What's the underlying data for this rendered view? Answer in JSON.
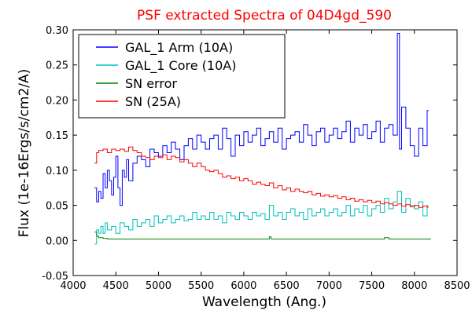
{
  "chart_data": {
    "type": "line",
    "title": "PSF extracted Spectra of 04D4gd_590",
    "title_color": "#ff0000",
    "xlabel": "Wavelength (Ang.)",
    "ylabel": "Flux (1e-16Ergs/s/cm2/A)",
    "xlim": [
      4000,
      8500
    ],
    "ylim": [
      -0.05,
      0.3
    ],
    "xticks": [
      4000,
      4500,
      5000,
      5500,
      6000,
      6500,
      7000,
      7500,
      8000,
      8500
    ],
    "xtick_labels": [
      "4000",
      "4500",
      "5000",
      "5500",
      "6000",
      "6500",
      "7000",
      "7500",
      "8000",
      "8500"
    ],
    "yticks": [
      -0.05,
      0.0,
      0.05,
      0.1,
      0.15,
      0.2,
      0.25,
      0.3
    ],
    "ytick_labels": [
      "-0.05",
      "0.00",
      "0.05",
      "0.10",
      "0.15",
      "0.20",
      "0.25",
      "0.30"
    ],
    "grid": false,
    "legend_position": "top-left",
    "series": [
      {
        "name": "GAL_1 Arm (10A)",
        "color": "#0000ff",
        "step": true,
        "x": [
          4250,
          4275,
          4300,
          4325,
          4350,
          4375,
          4400,
          4425,
          4450,
          4475,
          4500,
          4525,
          4550,
          4575,
          4600,
          4625,
          4650,
          4700,
          4750,
          4800,
          4850,
          4900,
          4950,
          5000,
          5050,
          5100,
          5150,
          5200,
          5250,
          5300,
          5350,
          5400,
          5450,
          5500,
          5550,
          5600,
          5650,
          5700,
          5750,
          5800,
          5850,
          5900,
          5950,
          6000,
          6050,
          6100,
          6150,
          6200,
          6250,
          6300,
          6350,
          6400,
          6450,
          6500,
          6550,
          6600,
          6650,
          6700,
          6750,
          6800,
          6850,
          6900,
          6950,
          7000,
          7050,
          7100,
          7150,
          7200,
          7250,
          7300,
          7350,
          7400,
          7450,
          7500,
          7550,
          7600,
          7650,
          7700,
          7750,
          7800,
          7825,
          7850,
          7900,
          7950,
          8000,
          8050,
          8100,
          8150
        ],
        "y": [
          0.075,
          0.055,
          0.07,
          0.06,
          0.095,
          0.075,
          0.1,
          0.085,
          0.065,
          0.09,
          0.12,
          0.075,
          0.05,
          0.1,
          0.09,
          0.115,
          0.085,
          0.11,
          0.12,
          0.115,
          0.105,
          0.13,
          0.125,
          0.12,
          0.135,
          0.125,
          0.14,
          0.13,
          0.115,
          0.135,
          0.145,
          0.13,
          0.15,
          0.14,
          0.13,
          0.145,
          0.15,
          0.13,
          0.16,
          0.145,
          0.12,
          0.15,
          0.135,
          0.155,
          0.14,
          0.15,
          0.16,
          0.135,
          0.145,
          0.155,
          0.14,
          0.16,
          0.13,
          0.145,
          0.15,
          0.155,
          0.14,
          0.165,
          0.15,
          0.135,
          0.155,
          0.16,
          0.14,
          0.15,
          0.16,
          0.145,
          0.155,
          0.17,
          0.14,
          0.16,
          0.15,
          0.165,
          0.145,
          0.155,
          0.17,
          0.14,
          0.16,
          0.165,
          0.15,
          0.295,
          0.13,
          0.19,
          0.16,
          0.135,
          0.12,
          0.16,
          0.135,
          0.185
        ]
      },
      {
        "name": "GAL_1 Core (10A)",
        "color": "#00bfbf",
        "step": true,
        "x": [
          4250,
          4275,
          4300,
          4325,
          4350,
          4375,
          4400,
          4450,
          4500,
          4550,
          4600,
          4650,
          4700,
          4750,
          4800,
          4850,
          4900,
          4950,
          5000,
          5050,
          5100,
          5150,
          5200,
          5250,
          5300,
          5350,
          5400,
          5450,
          5500,
          5550,
          5600,
          5650,
          5700,
          5750,
          5800,
          5850,
          5900,
          5950,
          6000,
          6050,
          6100,
          6150,
          6200,
          6250,
          6300,
          6350,
          6400,
          6450,
          6500,
          6550,
          6600,
          6650,
          6700,
          6750,
          6800,
          6850,
          6900,
          6950,
          7000,
          7050,
          7100,
          7150,
          7200,
          7250,
          7300,
          7350,
          7400,
          7450,
          7500,
          7550,
          7600,
          7650,
          7700,
          7750,
          7800,
          7850,
          7900,
          7950,
          8000,
          8050,
          8100,
          8150
        ],
        "y": [
          -0.005,
          0.015,
          0.01,
          0.02,
          0.01,
          0.025,
          0.015,
          0.02,
          0.01,
          0.025,
          0.02,
          0.015,
          0.03,
          0.02,
          0.025,
          0.03,
          0.02,
          0.035,
          0.025,
          0.03,
          0.035,
          0.025,
          0.03,
          0.035,
          0.028,
          0.03,
          0.04,
          0.03,
          0.035,
          0.03,
          0.04,
          0.03,
          0.035,
          0.025,
          0.04,
          0.035,
          0.03,
          0.04,
          0.035,
          0.03,
          0.04,
          0.035,
          0.038,
          0.03,
          0.05,
          0.035,
          0.04,
          0.03,
          0.04,
          0.045,
          0.035,
          0.04,
          0.03,
          0.045,
          0.035,
          0.04,
          0.045,
          0.035,
          0.04,
          0.045,
          0.035,
          0.04,
          0.05,
          0.035,
          0.045,
          0.04,
          0.05,
          0.035,
          0.045,
          0.05,
          0.04,
          0.06,
          0.045,
          0.055,
          0.07,
          0.04,
          0.06,
          0.05,
          0.045,
          0.055,
          0.035,
          0.05
        ]
      },
      {
        "name": "SN error",
        "color": "#008000",
        "step": true,
        "x": [
          4250,
          4275,
          4300,
          4350,
          4400,
          4500,
          4600,
          4800,
          5000,
          5500,
          6000,
          6300,
          6320,
          6500,
          7000,
          7500,
          7650,
          7700,
          8000,
          8150
        ],
        "y": [
          0.012,
          0.006,
          0.004,
          0.003,
          0.002,
          0.002,
          0.002,
          0.002,
          0.002,
          0.002,
          0.002,
          0.005,
          0.002,
          0.002,
          0.002,
          0.002,
          0.004,
          0.002,
          0.002,
          0.002
        ]
      },
      {
        "name": "SN (25A)",
        "color": "#ff0000",
        "step": true,
        "x": [
          4250,
          4275,
          4300,
          4350,
          4400,
          4450,
          4500,
          4550,
          4600,
          4650,
          4700,
          4750,
          4800,
          4850,
          4900,
          4950,
          5000,
          5050,
          5100,
          5150,
          5200,
          5250,
          5300,
          5350,
          5400,
          5450,
          5500,
          5550,
          5600,
          5650,
          5700,
          5750,
          5800,
          5850,
          5900,
          5950,
          6000,
          6050,
          6100,
          6150,
          6200,
          6250,
          6300,
          6350,
          6400,
          6450,
          6500,
          6550,
          6600,
          6650,
          6700,
          6750,
          6800,
          6850,
          6900,
          6950,
          7000,
          7050,
          7100,
          7150,
          7200,
          7250,
          7300,
          7350,
          7400,
          7450,
          7500,
          7550,
          7600,
          7650,
          7700,
          7750,
          7800,
          7850,
          7900,
          7950,
          8000,
          8050,
          8100,
          8150
        ],
        "y": [
          0.11,
          0.125,
          0.128,
          0.13,
          0.125,
          0.13,
          0.128,
          0.13,
          0.127,
          0.133,
          0.128,
          0.125,
          0.12,
          0.118,
          0.115,
          0.12,
          0.118,
          0.122,
          0.115,
          0.12,
          0.118,
          0.112,
          0.115,
          0.11,
          0.105,
          0.11,
          0.105,
          0.1,
          0.098,
          0.1,
          0.095,
          0.09,
          0.092,
          0.088,
          0.09,
          0.085,
          0.088,
          0.085,
          0.08,
          0.083,
          0.08,
          0.078,
          0.082,
          0.075,
          0.078,
          0.072,
          0.075,
          0.07,
          0.073,
          0.07,
          0.068,
          0.07,
          0.065,
          0.067,
          0.063,
          0.065,
          0.062,
          0.064,
          0.06,
          0.062,
          0.058,
          0.06,
          0.056,
          0.058,
          0.055,
          0.057,
          0.054,
          0.056,
          0.052,
          0.054,
          0.052,
          0.05,
          0.052,
          0.049,
          0.051,
          0.048,
          0.05,
          0.047,
          0.049,
          0.047
        ]
      }
    ]
  }
}
